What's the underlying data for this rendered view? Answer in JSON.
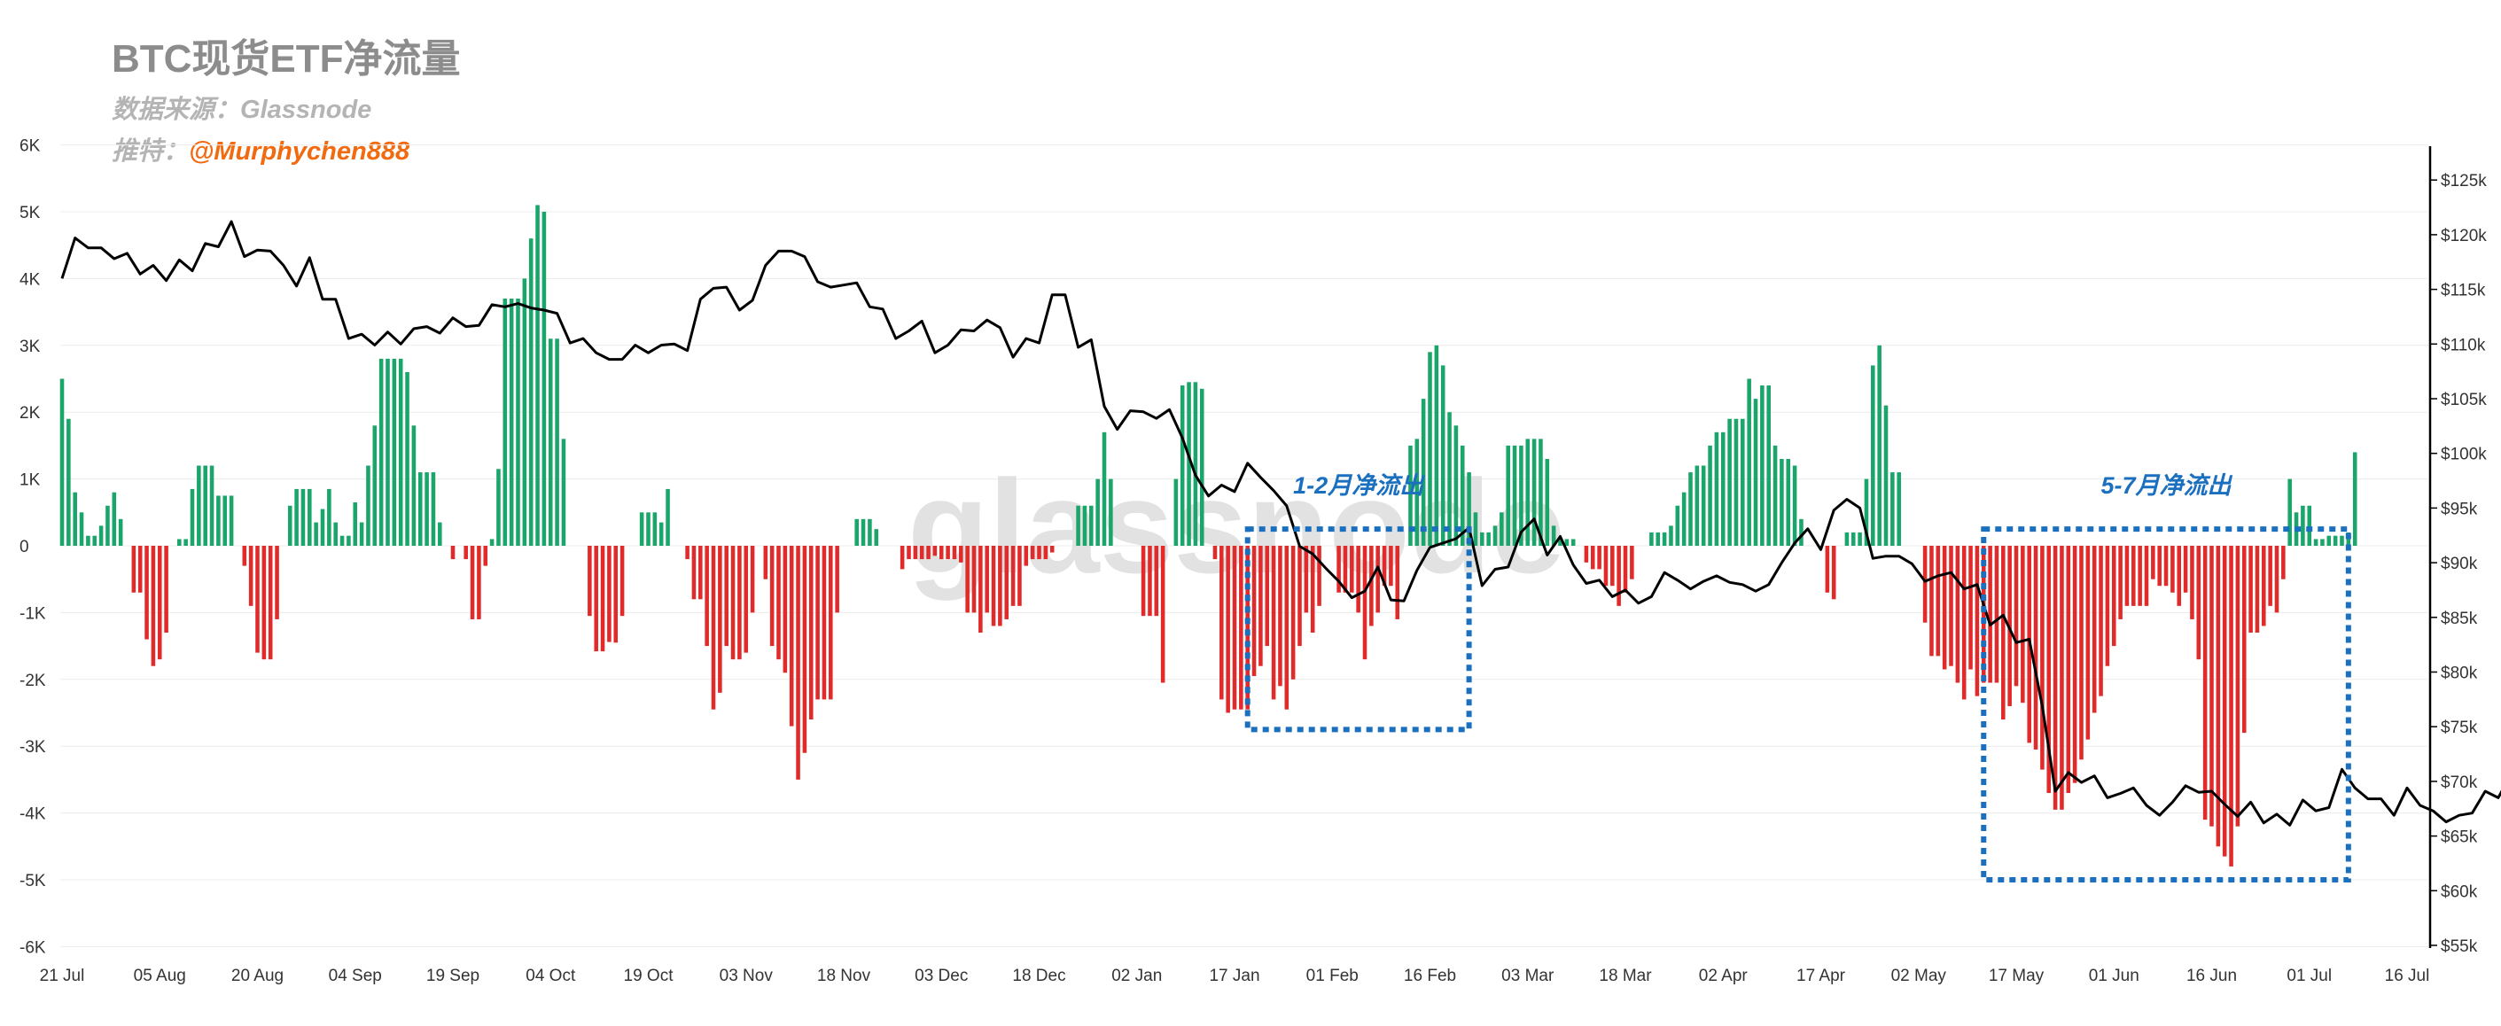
{
  "header": {
    "title": "BTC现货ETF净流量",
    "source_label": "数据来源：",
    "source_value": "Glassnode",
    "twitter_label": "推特：",
    "twitter_handle": "@Murphychen888"
  },
  "watermark": "glassnode",
  "annotations": [
    {
      "label": "1-2月净流出",
      "from": "2025-01-19",
      "to": "2025-02-22",
      "y_top": 250,
      "y_bottom": -2750
    },
    {
      "label": "5-7月净流出",
      "from": "2025-05-12",
      "to": "2025-07-07",
      "y_top": 250,
      "y_bottom": -5000
    }
  ],
  "colors": {
    "inflow": "#1aa56a",
    "outflow": "#e12a2a",
    "price_line": "#000000",
    "annotation": "#1a6fbf",
    "title": "#8c8c8c",
    "handle": "#f26a10"
  },
  "chart_data": {
    "type": "bar",
    "start_date": "2024-07-21",
    "x_ticks": [
      "21 Jul",
      "05 Aug",
      "20 Aug",
      "04 Sep",
      "19 Sep",
      "04 Oct",
      "19 Oct",
      "03 Nov",
      "18 Nov",
      "03 Dec",
      "18 Dec",
      "02 Jan",
      "17 Jan",
      "01 Feb",
      "16 Feb",
      "03 Mar",
      "18 Mar",
      "02 Apr",
      "17 Apr",
      "02 May",
      "17 May",
      "01 Jun",
      "16 Jun",
      "01 Jul",
      "16 Jul"
    ],
    "left_axis": {
      "min": -6000,
      "max": 6000,
      "ticks": [
        "-6K",
        "-5K",
        "-4K",
        "-3K",
        "-2K",
        "-1K",
        "0",
        "1K",
        "2K",
        "3K",
        "4K",
        "5K",
        "6K"
      ]
    },
    "right_axis": {
      "min": 55000,
      "max": 128000,
      "ticks": [
        "$55k",
        "$60k",
        "$65k",
        "$70k",
        "$75k",
        "$80k",
        "$85k",
        "$90k",
        "$95k",
        "$100k",
        "$105k",
        "$110k",
        "$115k",
        "$120k",
        "$125k"
      ]
    },
    "grid": true,
    "series": [
      {
        "kind": "bar",
        "values": [
          2500,
          1900,
          800,
          500,
          150,
          150,
          300,
          600,
          800,
          400,
          0,
          -700,
          -700,
          -1400,
          -1800,
          -1700,
          -1300,
          0,
          100,
          100,
          850,
          1200,
          1200,
          1200,
          750,
          750,
          750,
          0,
          -300,
          -900,
          -1600,
          -1700,
          -1700,
          -1100,
          0,
          600,
          850,
          850,
          850,
          350,
          550,
          850,
          350,
          150,
          150,
          650,
          350,
          1200,
          1800,
          2800,
          2800,
          2800,
          2800,
          2600,
          1800,
          1100,
          1100,
          1100,
          350,
          0,
          -200,
          0,
          -200,
          -1100,
          -1100,
          -300,
          100,
          1150,
          3700,
          3700,
          3700,
          4000,
          4600,
          5100,
          5000,
          3100,
          3100,
          1600,
          0,
          0,
          0,
          -1050,
          -1580,
          -1580,
          -1440,
          -1450,
          -1050,
          0,
          0,
          500,
          500,
          500,
          350,
          850,
          0,
          0,
          -200,
          -800,
          -800,
          -1500,
          -2450,
          -2200,
          -1500,
          -1700,
          -1700,
          -1600,
          -1000,
          0,
          -500,
          -1500,
          -1700,
          -1900,
          -2700,
          -3500,
          -3100,
          -2600,
          -2300,
          -2300,
          -2300,
          -1000,
          0,
          0,
          400,
          400,
          400,
          250,
          0,
          0,
          0,
          -350,
          -200,
          -200,
          -200,
          -200,
          -150,
          -200,
          -200,
          -200,
          -250,
          -1000,
          -1000,
          -1300,
          -1000,
          -1200,
          -1200,
          -1100,
          -900,
          -900,
          -300,
          -200,
          -200,
          -200,
          -100,
          0,
          0,
          0,
          600,
          600,
          600,
          1000,
          1700,
          1000,
          0,
          0,
          0,
          0,
          -1050,
          -1050,
          -1050,
          -2050,
          0,
          1000,
          2400,
          2450,
          2450,
          2350,
          0,
          -200,
          -2300,
          -2500,
          -2450,
          -2450,
          -2450,
          -1950,
          -1800,
          -1500,
          -2300,
          -2100,
          -2450,
          -2000,
          -1500,
          -1000,
          -1300,
          -900,
          0,
          0,
          -700,
          -700,
          -700,
          -1000,
          -1700,
          -1200,
          -1000,
          -600,
          -600,
          -1100,
          0,
          1500,
          1600,
          2200,
          2900,
          3000,
          2700,
          2000,
          1800,
          1500,
          1100,
          500,
          200,
          200,
          300,
          500,
          1500,
          1500,
          1500,
          1600,
          1600,
          1600,
          1300,
          300,
          100,
          100,
          100,
          0,
          -250,
          -350,
          -350,
          -600,
          -600,
          -900,
          -700,
          -500,
          0,
          0,
          200,
          200,
          200,
          300,
          600,
          800,
          1100,
          1200,
          1200,
          1500,
          1700,
          1700,
          1900,
          1900,
          1900,
          2500,
          2200,
          2400,
          2400,
          1500,
          1300,
          1300,
          1200,
          400,
          0,
          0,
          0,
          -700,
          -800,
          0,
          200,
          200,
          200,
          1000,
          2700,
          3000,
          2100,
          1100,
          1100,
          0,
          0,
          0,
          -1150,
          -1650,
          -1650,
          -1850,
          -1800,
          -2050,
          -2300,
          -1850,
          -2250,
          -2050,
          -2050,
          -2050,
          -2600,
          -2400,
          -2100,
          -2350,
          -2950,
          -3050,
          -3350,
          -3700,
          -3950,
          -3950,
          -3700,
          -3550,
          -3200,
          -2900,
          -2500,
          -2250,
          -1800,
          -1500,
          -1100,
          -900,
          -900,
          -900,
          -900,
          -500,
          -600,
          -600,
          -700,
          -900,
          -700,
          -1100,
          -1700,
          -4100,
          -4200,
          -4500,
          -4650,
          -4800,
          -4200,
          -2800,
          -1300,
          -1300,
          -1200,
          -900,
          -1000,
          -500,
          1000,
          500,
          600,
          600,
          100,
          100,
          150,
          150,
          150,
          200,
          1400
        ]
      },
      {
        "kind": "line",
        "name": "BTC price",
        "step_days": 2,
        "values": [
          116000,
          119700,
          118800,
          118800,
          117800,
          118300,
          116400,
          117200,
          115800,
          117700,
          116700,
          119200,
          118900,
          121200,
          118000,
          118600,
          118500,
          117200,
          115300,
          117900,
          114100,
          114100,
          110500,
          110900,
          109900,
          111100,
          110000,
          111400,
          111600,
          111000,
          112400,
          111600,
          111700,
          113600,
          113400,
          113700,
          113300,
          113100,
          112800,
          110100,
          110500,
          109200,
          108600,
          108600,
          109900,
          109200,
          109900,
          110000,
          109400,
          114100,
          115100,
          115200,
          113100,
          114000,
          117200,
          118500,
          118500,
          118000,
          115700,
          115200,
          115400,
          115600,
          113400,
          113200,
          110500,
          111200,
          112100,
          109200,
          109900,
          111300,
          111200,
          112200,
          111500,
          108800,
          110500,
          110100,
          114500,
          114500,
          109700,
          110400,
          104300,
          102200,
          103900,
          103800,
          103200,
          104000,
          101400,
          98000,
          96100,
          97100,
          96500,
          99100,
          97800,
          96600,
          95200,
          91500,
          90800,
          89500,
          88300,
          86800,
          87400,
          89600,
          86600,
          86500,
          89300,
          91400,
          91800,
          92200,
          93200,
          87900,
          89400,
          89600,
          92800,
          94000,
          90700,
          92400,
          89800,
          88100,
          88400,
          86900,
          87500,
          86300,
          86900,
          89100,
          88400,
          87600,
          88300,
          88800,
          88200,
          88000,
          87400,
          88000,
          90000,
          91800,
          93100,
          91200,
          94800,
          95800,
          95000,
          90400,
          90600,
          90600,
          89900,
          88300,
          88800,
          89100,
          87600,
          88000,
          84300,
          85200,
          82700,
          83000,
          76900,
          69100,
          70800,
          69900,
          70500,
          68500,
          68900,
          69400,
          67800,
          66900,
          68100,
          69600,
          69000,
          69100,
          67900,
          66800,
          68100,
          66200,
          67000,
          66000,
          68300,
          67300,
          67600,
          71100,
          69400,
          68400,
          68400,
          66900,
          69400,
          67800,
          67300,
          66300,
          66900,
          67100,
          69100,
          68500,
          70700,
          68900,
          68400,
          66600,
          66700,
          67800,
          67800,
          66800,
          68500,
          70800,
          72000,
          72200,
          73000,
          72500,
          73200,
          76000,
          76300,
          74900,
          76300,
          77800,
          77500,
          78100,
          78300,
          77000,
          75700,
          79100,
          79500,
          78700,
          80100,
          79800,
          78900,
          78100,
          79800,
          79800,
          80400,
          79500,
          80000,
          80100,
          79700,
          78700,
          74500,
          72400,
          71400,
          71000,
          69800,
          68000,
          66800,
          65800,
          65300,
          62600,
          60800,
          60700,
          61000,
          61500,
          61000,
          62600,
          62600,
          62400,
          62200,
          62200,
          61900,
          61700,
          61200,
          61300,
          61200,
          60800,
          60600,
          60400,
          60200,
          60300,
          58800,
          60500,
          61700,
          62800,
          63400,
          63700,
          62700,
          62900,
          63700,
          64300,
          64100,
          64400,
          64300,
          63900,
          64700,
          64200,
          64900,
          65000,
          64900,
          64600,
          65500
        ]
      }
    ],
    "title": "",
    "xlabel": "",
    "ylabel": ""
  }
}
